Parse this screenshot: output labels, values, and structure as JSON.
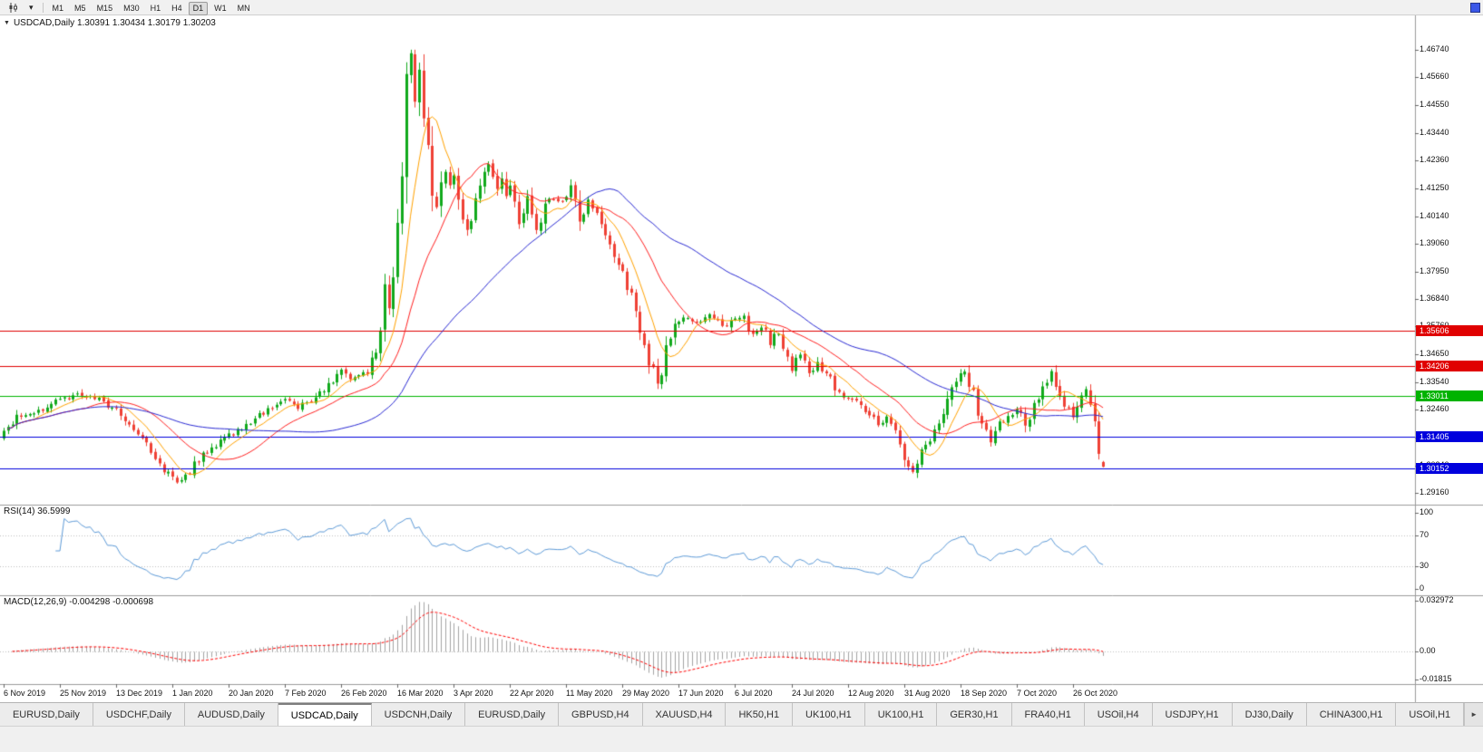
{
  "toolbar": {
    "timeframes": [
      "M1",
      "M5",
      "M15",
      "M30",
      "H1",
      "H4",
      "D1",
      "W1",
      "MN"
    ],
    "active_timeframe": "D1"
  },
  "icons": {
    "dropdown": "▾",
    "title_marker": "▼",
    "tab_scroll_right": "►"
  },
  "chart": {
    "title_line": "USDCAD,Daily 1.30391 1.30434 1.30179 1.30203",
    "price_range": {
      "top": 1.481,
      "bottom": 1.287
    },
    "price_axis_ticks": [
      "1.46740",
      "1.45660",
      "1.44550",
      "1.43440",
      "1.42360",
      "1.41250",
      "1.40140",
      "1.39060",
      "1.37950",
      "1.36840",
      "1.35760",
      "1.34650",
      "1.33540",
      "1.32460",
      "1.31350",
      "1.30240",
      "1.29160"
    ],
    "hlines": [
      {
        "price": 1.35606,
        "label": "1.35606",
        "color": "#e00000"
      },
      {
        "price": 1.34206,
        "label": "1.34206",
        "color": "#e00000"
      },
      {
        "price": 1.33011,
        "label": "1.33011",
        "color": "#00b300"
      },
      {
        "price": 1.31405,
        "label": "1.31405",
        "color": "#0000dd"
      },
      {
        "price": 1.30152,
        "label": "1.30152",
        "color": "#0000dd"
      }
    ],
    "date_axis_labels": [
      "6 Nov 2019",
      "25 Nov 2019",
      "13 Dec 2019",
      "1 Jan 2020",
      "20 Jan 2020",
      "7 Feb 2020",
      "26 Feb 2020",
      "16 Mar 2020",
      "3 Apr 2020",
      "22 Apr 2020",
      "11 May 2020",
      "29 May 2020",
      "17 Jun 2020",
      "6 Jul 2020",
      "24 Jul 2020",
      "12 Aug 2020",
      "31 Aug 2020",
      "18 Sep 2020",
      "7 Oct 2020",
      "26 Oct 2020"
    ]
  },
  "rsi": {
    "label": "RSI(14) 36.5999",
    "period": 14,
    "current_value": 36.5999,
    "levels": [
      "100",
      "70",
      "30",
      "0"
    ],
    "level_values": [
      100,
      70,
      30,
      0
    ],
    "dotted_levels": [
      70,
      30
    ]
  },
  "macd": {
    "label": "MACD(12,26,9) -0.004298 -0.000698",
    "params": [
      12,
      26,
      9
    ],
    "current_macd": -0.004298,
    "current_signal": -0.000698,
    "axis_labels": [
      {
        "text": "0.032972",
        "value": 0.032972
      },
      {
        "text": "0.00",
        "value": 0
      },
      {
        "text": "-0.01815",
        "value": -0.01815
      }
    ]
  },
  "chart_data": {
    "type": "candlestick",
    "symbol": "USDCAD",
    "timeframe": "Daily",
    "x_range": [
      "6 Nov 2019",
      "4 Nov 2020"
    ],
    "bar_count": 255,
    "bars_per_x_label": 13,
    "layout": {
      "first_x": 4,
      "bar_spacing": 4.772
    },
    "last_bar": {
      "open": 1.30391,
      "high": 1.30434,
      "low": 1.30179,
      "close": 1.30203
    },
    "extremes": {
      "high": 1.4674,
      "low": 1.295
    },
    "anchors": [
      [
        0,
        1.317
      ],
      [
        3,
        1.3215
      ],
      [
        6,
        1.323
      ],
      [
        9,
        1.325
      ],
      [
        13,
        1.3285
      ],
      [
        16,
        1.3305
      ],
      [
        19,
        1.3295
      ],
      [
        22,
        1.3285
      ],
      [
        26,
        1.3245
      ],
      [
        29,
        1.319
      ],
      [
        32,
        1.3135
      ],
      [
        35,
        1.306
      ],
      [
        38,
        1.299
      ],
      [
        40,
        1.2958
      ],
      [
        42,
        1.2975
      ],
      [
        45,
        1.305
      ],
      [
        48,
        1.309
      ],
      [
        52,
        1.314
      ],
      [
        55,
        1.3175
      ],
      [
        58,
        1.321
      ],
      [
        61,
        1.325
      ],
      [
        64,
        1.3285
      ],
      [
        66,
        1.329
      ],
      [
        68,
        1.326
      ],
      [
        70,
        1.327
      ],
      [
        72,
        1.33
      ],
      [
        75,
        1.3345
      ],
      [
        78,
        1.34
      ],
      [
        80,
        1.3375
      ],
      [
        82,
        1.3385
      ],
      [
        84,
        1.3405
      ],
      [
        86,
        1.349
      ],
      [
        87,
        1.356
      ],
      [
        88,
        1.375
      ],
      [
        89,
        1.366
      ],
      [
        90,
        1.381
      ],
      [
        91,
        1.399
      ],
      [
        92,
        1.424
      ],
      [
        93,
        1.451
      ],
      [
        94,
        1.466
      ],
      [
        95,
        1.448
      ],
      [
        96,
        1.459
      ],
      [
        97,
        1.444
      ],
      [
        98,
        1.426
      ],
      [
        99,
        1.412
      ],
      [
        100,
        1.406
      ],
      [
        101,
        1.415
      ],
      [
        102,
        1.419
      ],
      [
        103,
        1.413
      ],
      [
        104,
        1.419
      ],
      [
        105,
        1.408
      ],
      [
        106,
        1.402
      ],
      [
        107,
        1.396
      ],
      [
        108,
        1.401
      ],
      [
        109,
        1.409
      ],
      [
        110,
        1.416
      ],
      [
        111,
        1.42
      ],
      [
        112,
        1.423
      ],
      [
        113,
        1.418
      ],
      [
        114,
        1.412
      ],
      [
        115,
        1.416
      ],
      [
        116,
        1.41
      ],
      [
        117,
        1.4125
      ],
      [
        119,
        1.399
      ],
      [
        121,
        1.409
      ],
      [
        123,
        1.395
      ],
      [
        125,
        1.408
      ],
      [
        127,
        1.407
      ],
      [
        129,
        1.406
      ],
      [
        131,
        1.4125
      ],
      [
        133,
        1.399
      ],
      [
        135,
        1.409
      ],
      [
        137,
        1.403
      ],
      [
        139,
        1.392
      ],
      [
        141,
        1.387
      ],
      [
        143,
        1.378
      ],
      [
        145,
        1.369
      ],
      [
        147,
        1.357
      ],
      [
        149,
        1.344
      ],
      [
        151,
        1.335
      ],
      [
        152,
        1.34
      ],
      [
        153,
        1.348
      ],
      [
        155,
        1.357
      ],
      [
        157,
        1.361
      ],
      [
        159,
        1.359
      ],
      [
        161,
        1.36
      ],
      [
        163,
        1.362
      ],
      [
        165,
        1.359
      ],
      [
        167,
        1.358
      ],
      [
        169,
        1.36
      ],
      [
        171,
        1.361
      ],
      [
        173,
        1.354
      ],
      [
        175,
        1.358
      ],
      [
        177,
        1.351
      ],
      [
        179,
        1.356
      ],
      [
        181,
        1.345
      ],
      [
        182,
        1.341
      ],
      [
        184,
        1.347
      ],
      [
        186,
        1.34
      ],
      [
        188,
        1.343
      ],
      [
        190,
        1.339
      ],
      [
        192,
        1.334
      ],
      [
        194,
        1.329
      ],
      [
        196,
        1.329
      ],
      [
        198,
        1.327
      ],
      [
        200,
        1.323
      ],
      [
        202,
        1.319
      ],
      [
        204,
        1.321
      ],
      [
        206,
        1.318
      ],
      [
        208,
        1.307
      ],
      [
        210,
        1.3
      ],
      [
        212,
        1.309
      ],
      [
        214,
        1.311
      ],
      [
        216,
        1.32
      ],
      [
        218,
        1.329
      ],
      [
        220,
        1.336
      ],
      [
        222,
        1.341
      ],
      [
        224,
        1.33
      ],
      [
        226,
        1.319
      ],
      [
        228,
        1.312
      ],
      [
        230,
        1.32
      ],
      [
        232,
        1.321
      ],
      [
        234,
        1.325
      ],
      [
        236,
        1.318
      ],
      [
        238,
        1.327
      ],
      [
        240,
        1.334
      ],
      [
        242,
        1.34
      ],
      [
        244,
        1.331
      ],
      [
        246,
        1.324
      ],
      [
        247,
        1.321
      ],
      [
        248,
        1.327
      ],
      [
        250,
        1.333
      ],
      [
        251,
        1.329
      ],
      [
        252,
        1.319
      ],
      [
        253,
        1.306
      ],
      [
        254,
        1.30203
      ]
    ],
    "pin_indices": [
      40,
      94,
      151,
      210,
      254
    ],
    "moving_averages": [
      {
        "period": 8,
        "color": "#ffa200"
      },
      {
        "period": 20,
        "color": "#ff2020"
      },
      {
        "period": 50,
        "color": "#2a2ad4"
      }
    ]
  },
  "colors": {
    "candle_up": "#11a91c",
    "candle_down": "#ef4135",
    "rsi_line": "#5e9bd8",
    "macd_hist": "#a3a3a3",
    "macd_signal": "#ff0000",
    "separator": "#9b9b9b",
    "grid_dotted": "#bfbfbf"
  },
  "tabs": {
    "items": [
      "EURUSD,Daily",
      "USDCHF,Daily",
      "AUDUSD,Daily",
      "USDCAD,Daily",
      "USDCNH,Daily",
      "EURUSD,Daily",
      "GBPUSD,H4",
      "XAUUSD,H4",
      "HK50,H1",
      "UK100,H1",
      "UK100,H1",
      "GER30,H1",
      "FRA40,H1",
      "USOil,H4",
      "USDJPY,H1",
      "DJ30,Daily",
      "CHINA300,H1",
      "USOil,H1"
    ],
    "active_index": 3
  }
}
